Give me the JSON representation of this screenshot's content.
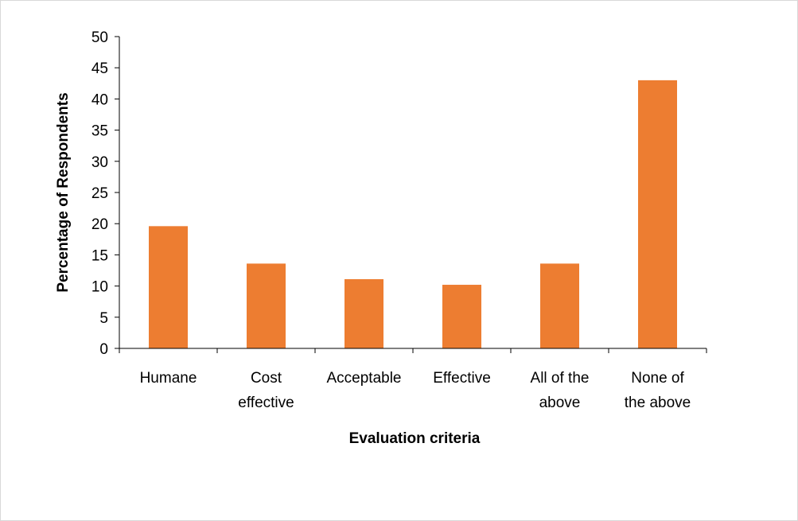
{
  "chart_data": {
    "type": "bar",
    "title": "",
    "xlabel": "Evaluation criteria",
    "ylabel": "Percentage of Respondents",
    "categories": [
      [
        "Humane"
      ],
      [
        "Cost",
        "effective"
      ],
      [
        "Acceptable"
      ],
      [
        "Effective"
      ],
      [
        "All of the",
        "above"
      ],
      [
        "None of",
        "the above"
      ]
    ],
    "values": [
      19.6,
      13.6,
      11.1,
      10.2,
      13.6,
      43.0
    ],
    "ylim": [
      0,
      50
    ],
    "yticks": [
      0,
      5,
      10,
      15,
      20,
      25,
      30,
      35,
      40,
      45,
      50
    ],
    "grid": false,
    "legend": "none",
    "colors": {
      "bar": "#ED7D31",
      "axis": "#000000",
      "frame": "#D9D9D9"
    }
  }
}
